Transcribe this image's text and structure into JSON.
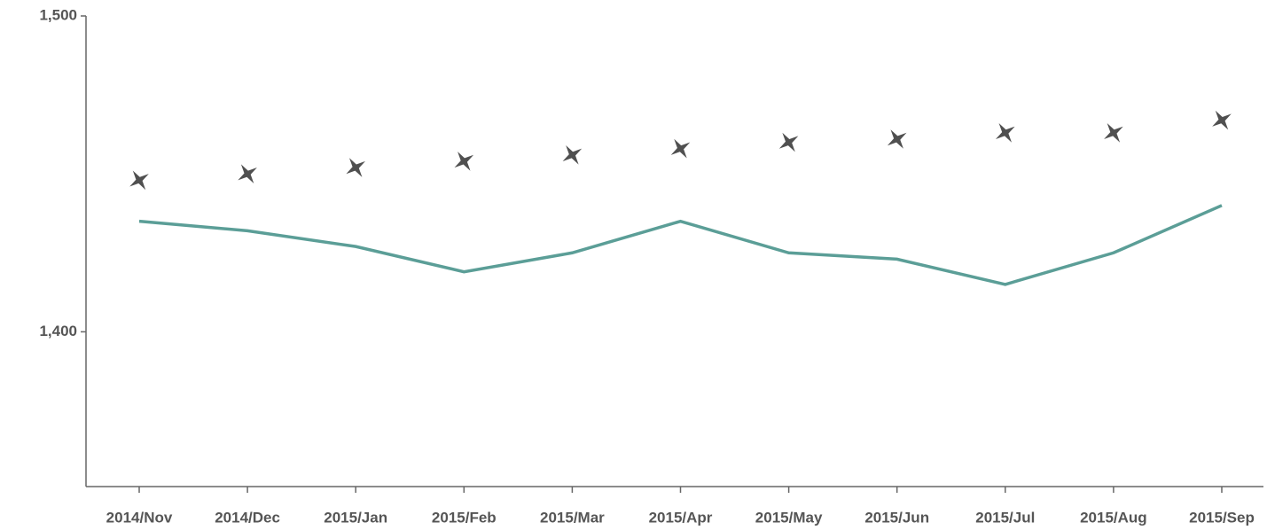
{
  "chart_data": {
    "type": "line",
    "categories": [
      "2014/Nov",
      "2014/Dec",
      "2015/Jan",
      "2015/Feb",
      "2015/Mar",
      "2015/Apr",
      "2015/May",
      "2015/Jun",
      "2015/Jul",
      "2015/Aug",
      "2015/Sep"
    ],
    "series": [
      {
        "color": "#5b9e97",
        "marker": "none",
        "values": [
          1435,
          1432,
          1427,
          1419,
          1425,
          1435,
          1425,
          1423,
          1415,
          1425,
          1440
        ]
      },
      {
        "color": "#505050",
        "marker": "star",
        "line": false,
        "values": [
          1448,
          1450,
          1452,
          1454,
          1456,
          1458,
          1460,
          1461,
          1463,
          1463,
          1467
        ]
      }
    ],
    "ylim": [
      1351,
      1500
    ],
    "yticks": [
      {
        "value": 1400,
        "label": "1,400"
      },
      {
        "value": 1500,
        "label": "1,500"
      }
    ],
    "grid": false
  }
}
